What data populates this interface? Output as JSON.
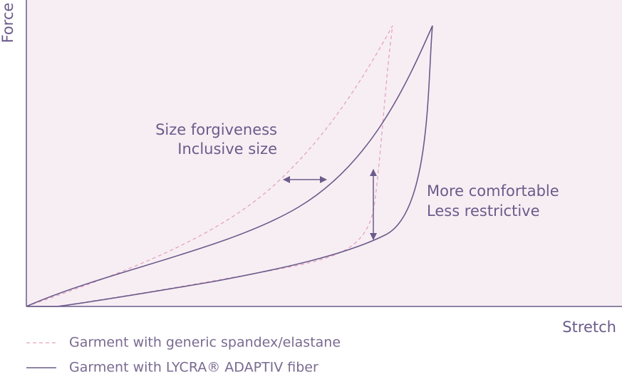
{
  "axes": {
    "y_label": "Force",
    "x_label": "Stretch"
  },
  "annotations": [
    {
      "lines": [
        "Size forgiveness",
        "Inclusive size"
      ]
    },
    {
      "lines": [
        "More comfortable",
        "Less restrictive"
      ]
    }
  ],
  "legend": [
    "Garment with generic spandex/elastane",
    "Garment with LYCRA® ADAPTIV fiber"
  ]
}
